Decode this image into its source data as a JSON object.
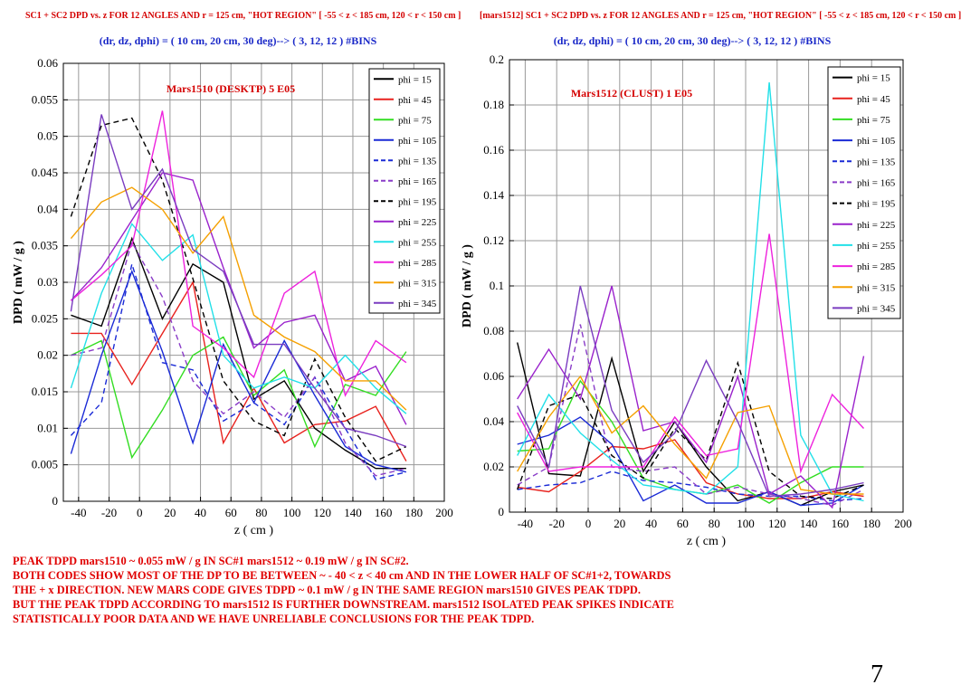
{
  "page_number": "7",
  "notes": [
    "  PEAK  TDPD  mars1510  ~  0.055   mW / g    IN  SC#1   mars1512 ~  0.19 mW / g  IN  SC#2.",
    "  BOTH CODES  SHOW  MOST OF THE DP TO BE   BETWEEN  ~  - 40 < z < 40 cm  AND  IN  THE  LOWER  HALF  OF SC#1+2,  TOWARDS",
    "THE  + x DIRECTION.  NEW  MARS  CODE GIVES    TDPD  ~ 0.1 mW / g  IN THE SAME REGION  mars1510  GIVES  PEAK TDPD.",
    "BUT  THE  PEAK TDPD  ACCORDING  TO  mars1512  IS  FURTHER DOWNSTREAM.   mars1512  ISOLATED  PEAK  SPIKES  INDICATE",
    "STATISTICALLY   POOR  DATA  AND WE  HAVE  UNRELIABLE  CONCLUSIONS  FOR THE  PEAK  TDPD."
  ],
  "legend_colors": {
    "phi = 15": "#000000",
    "phi = 45": "#e8221e",
    "phi = 75": "#33dd22",
    "phi = 105": "#1a2ad6",
    "phi = 135": "#1a2ad6",
    "phi = 165": "#8a3cc8",
    "phi = 195": "#000000",
    "phi = 225": "#9a22cc",
    "phi = 255": "#22e0e8",
    "phi = 285": "#ee22dd",
    "phi = 315": "#f5a000",
    "phi = 345": "#7a3cc0"
  },
  "dashed_series": [
    "phi = 135",
    "phi = 165",
    "phi = 195"
  ],
  "chart_data": [
    {
      "type": "line",
      "title": "SC1 + SC2  DPD  vs. z  FOR 12 ANGLES AND r = 125 cm,  \"HOT REGION\"  [ -55 < z < 185 cm,  120 < r < 150 cm ]",
      "subtitle": "(dr, dz, dphi)  =  ( 10 cm, 20 cm, 30 deg)--> ( 3, 12, 12 ) #BINS",
      "annotation": "Mars1510 (DESKTP)  5 E05",
      "xlabel": "z ( cm )",
      "ylabel": "DPD  ( mW / g )",
      "xlim": [
        -50,
        200
      ],
      "ylim": [
        0,
        0.06
      ],
      "xticks": [
        -40,
        -20,
        0,
        20,
        40,
        60,
        80,
        100,
        120,
        140,
        160,
        180,
        200
      ],
      "yticks": [
        0,
        0.005,
        0.01,
        0.015,
        0.02,
        0.025,
        0.03,
        0.035,
        0.04,
        0.045,
        0.05,
        0.055,
        0.06
      ],
      "ytick_labels": [
        "0",
        "0.005",
        "0.01",
        "0.015",
        "0.02",
        "0.025",
        "0.03",
        "0.035",
        "0.04",
        "0.045",
        "0.05",
        "0.055",
        "0.06"
      ],
      "grid": true,
      "legend_position": "top-right",
      "x": [
        -45,
        -25,
        -5,
        15,
        35,
        55,
        75,
        95,
        115,
        135,
        155,
        175
      ],
      "series": [
        {
          "name": "phi = 15",
          "values": [
            0.0255,
            0.024,
            0.036,
            0.025,
            0.0325,
            0.03,
            0.014,
            0.0165,
            0.01,
            0.007,
            0.0045,
            0.0045
          ]
        },
        {
          "name": "phi = 45",
          "values": [
            0.023,
            0.023,
            0.016,
            0.023,
            0.03,
            0.008,
            0.0155,
            0.008,
            0.0105,
            0.011,
            0.013,
            0.0055
          ]
        },
        {
          "name": "phi = 75",
          "values": [
            0.02,
            0.022,
            0.006,
            0.0125,
            0.02,
            0.0225,
            0.0145,
            0.018,
            0.0075,
            0.016,
            0.0145,
            0.0205
          ]
        },
        {
          "name": "phi = 105",
          "values": [
            0.0065,
            0.02,
            0.0315,
            0.0205,
            0.008,
            0.0215,
            0.0135,
            0.022,
            0.0145,
            0.0075,
            0.005,
            0.004
          ]
        },
        {
          "name": "phi = 135",
          "values": [
            0.009,
            0.0135,
            0.0325,
            0.019,
            0.018,
            0.011,
            0.0135,
            0.0105,
            0.017,
            0.01,
            0.003,
            0.004
          ]
        },
        {
          "name": "phi = 165",
          "values": [
            0.02,
            0.021,
            0.0355,
            0.028,
            0.0165,
            0.012,
            0.015,
            0.0115,
            0.017,
            0.008,
            0.0035,
            0.0045
          ]
        },
        {
          "name": "phi = 195",
          "values": [
            0.039,
            0.0515,
            0.0525,
            0.044,
            0.0305,
            0.0165,
            0.011,
            0.009,
            0.0195,
            0.0115,
            0.0055,
            0.0075
          ]
        },
        {
          "name": "phi = 225",
          "values": [
            0.0275,
            0.032,
            0.0385,
            0.045,
            0.044,
            0.032,
            0.021,
            0.0245,
            0.0255,
            0.0165,
            0.0185,
            0.0105
          ]
        },
        {
          "name": "phi = 255",
          "values": [
            0.0155,
            0.0285,
            0.038,
            0.033,
            0.0365,
            0.02,
            0.0155,
            0.017,
            0.0155,
            0.02,
            0.0155,
            0.012
          ]
        },
        {
          "name": "phi = 285",
          "values": [
            0.0275,
            0.031,
            0.035,
            0.0535,
            0.024,
            0.021,
            0.017,
            0.0285,
            0.0315,
            0.0145,
            0.022,
            0.019
          ]
        },
        {
          "name": "phi = 315",
          "values": [
            0.036,
            0.041,
            0.043,
            0.04,
            0.034,
            0.039,
            0.0255,
            0.0225,
            0.0205,
            0.0165,
            0.0165,
            0.0125
          ]
        },
        {
          "name": "phi = 345",
          "values": [
            0.026,
            0.053,
            0.04,
            0.0455,
            0.0345,
            0.0315,
            0.0215,
            0.0215,
            0.0155,
            0.01,
            0.009,
            0.0075
          ]
        }
      ]
    },
    {
      "type": "line",
      "title": "[mars1512] SC1 + SC2  DPD  vs. z  FOR 12 ANGLES AND r = 125 cm,  \"HOT REGION\"  [ -55 < z < 185 cm,  120 < r < 150 cm ]",
      "subtitle": "(dr, dz, dphi)  =  ( 10 cm, 20 cm, 30 deg)--> ( 3, 12, 12 ) #BINS",
      "annotation": "Mars1512 (CLUST)  1 E05",
      "xlabel": "z ( cm )",
      "ylabel": "DPD  ( mW / g )",
      "xlim": [
        -50,
        200
      ],
      "ylim": [
        0,
        0.2
      ],
      "xticks": [
        -40,
        -20,
        0,
        20,
        40,
        60,
        80,
        100,
        120,
        140,
        160,
        180,
        200
      ],
      "yticks": [
        0,
        0.02,
        0.04,
        0.06,
        0.08,
        0.1,
        0.12,
        0.14,
        0.16,
        0.18,
        0.2
      ],
      "ytick_labels": [
        "0",
        "0.02",
        "0.04",
        "0.06",
        "0.08",
        "0.1",
        "0.12",
        "0.14",
        "0.16",
        "0.18",
        "0.2"
      ],
      "grid": true,
      "legend_position": "top-right",
      "x": [
        -45,
        -25,
        -5,
        15,
        35,
        55,
        75,
        95,
        115,
        135,
        155,
        175
      ],
      "series": [
        {
          "name": "phi = 15",
          "values": [
            0.075,
            0.017,
            0.016,
            0.068,
            0.018,
            0.04,
            0.02,
            0.005,
            0.009,
            0.003,
            0.009,
            0.012
          ]
        },
        {
          "name": "phi = 45",
          "values": [
            0.011,
            0.009,
            0.018,
            0.029,
            0.028,
            0.032,
            0.013,
            0.008,
            0.006,
            0.006,
            0.009,
            0.007
          ]
        },
        {
          "name": "phi = 75",
          "values": [
            0.027,
            0.028,
            0.058,
            0.04,
            0.015,
            0.01,
            0.008,
            0.012,
            0.004,
            0.013,
            0.02,
            0.02
          ]
        },
        {
          "name": "phi = 105",
          "values": [
            0.03,
            0.034,
            0.042,
            0.03,
            0.005,
            0.012,
            0.004,
            0.004,
            0.009,
            0.003,
            0.004,
            0.012
          ]
        },
        {
          "name": "phi = 135",
          "values": [
            0.01,
            0.012,
            0.013,
            0.018,
            0.014,
            0.013,
            0.011,
            0.008,
            0.007,
            0.007,
            0.005,
            0.006
          ]
        },
        {
          "name": "phi = 165",
          "values": [
            0.012,
            0.02,
            0.083,
            0.02,
            0.018,
            0.02,
            0.008,
            0.011,
            0.008,
            0.006,
            0.003,
            0.01
          ]
        },
        {
          "name": "phi = 195",
          "values": [
            0.01,
            0.047,
            0.052,
            0.025,
            0.015,
            0.037,
            0.023,
            0.066,
            0.018,
            0.007,
            0.006,
            0.012
          ]
        },
        {
          "name": "phi = 225",
          "values": [
            0.05,
            0.072,
            0.05,
            0.1,
            0.036,
            0.04,
            0.022,
            0.06,
            0.008,
            0.016,
            0.002,
            0.069
          ]
        },
        {
          "name": "phi = 255",
          "values": [
            0.025,
            0.052,
            0.035,
            0.023,
            0.012,
            0.01,
            0.008,
            0.02,
            0.19,
            0.034,
            0.008,
            0.005
          ]
        },
        {
          "name": "phi = 285",
          "values": [
            0.044,
            0.018,
            0.02,
            0.02,
            0.02,
            0.042,
            0.025,
            0.028,
            0.123,
            0.018,
            0.052,
            0.037
          ]
        },
        {
          "name": "phi = 315",
          "values": [
            0.018,
            0.042,
            0.06,
            0.035,
            0.047,
            0.03,
            0.015,
            0.044,
            0.047,
            0.01,
            0.008,
            0.008
          ]
        },
        {
          "name": "phi = 345",
          "values": [
            0.047,
            0.02,
            0.1,
            0.045,
            0.022,
            0.035,
            0.067,
            0.04,
            0.007,
            0.008,
            0.01,
            0.013
          ]
        }
      ]
    }
  ]
}
